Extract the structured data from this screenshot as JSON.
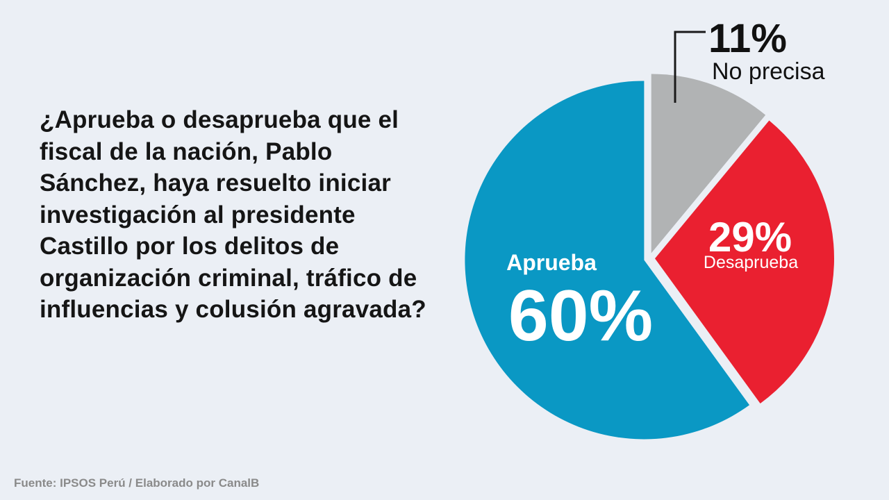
{
  "question": "¿Aprueba o desaprueba que el fiscal de la nación, Pablo Sánchez, haya resuelto iniciar investigación al presidente Castillo por los delitos de organización criminal, tráfico de influencias y colusión agravada?",
  "source": "Fuente: IPSOS Perú / Elaborado por CanalB",
  "chart_data": {
    "type": "pie",
    "title": "",
    "slices": [
      {
        "name": "No precisa",
        "value": 11,
        "label": "11%",
        "color": "#b1b3b4"
      },
      {
        "name": "Desaprueba",
        "value": 29,
        "label": "29%",
        "color": "#ea2030"
      },
      {
        "name": "Aprueba",
        "value": 60,
        "label": "60%",
        "color": "#0a98c4"
      }
    ]
  }
}
